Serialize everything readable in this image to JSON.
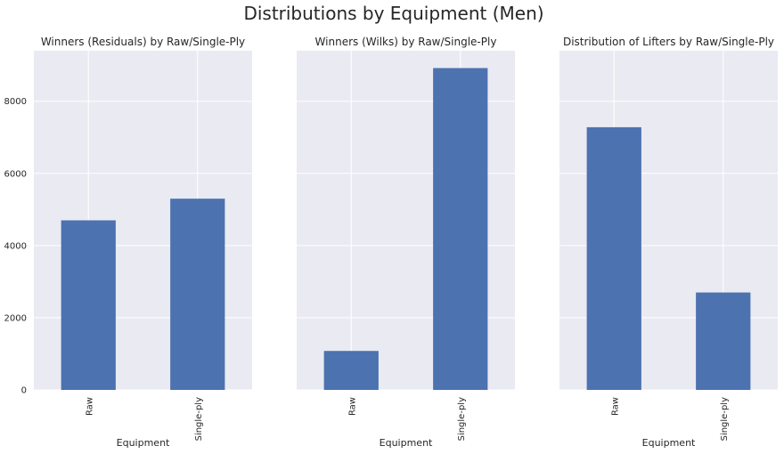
{
  "figure": {
    "title": "Distributions by Equipment (Men)"
  },
  "colors": {
    "bar": "#4c72b0",
    "plot_background": "#eaeaf2",
    "grid": "#ffffff",
    "text": "#262626"
  },
  "chart_data": [
    {
      "type": "bar",
      "title": "Winners (Residuals) by Raw/Single-Ply",
      "xlabel": "Equipment",
      "ylabel": "",
      "categories": [
        "Raw",
        "Single-ply"
      ],
      "values": [
        4700,
        5300
      ],
      "ylim": [
        0,
        9400
      ],
      "yticks": [
        0,
        2000,
        4000,
        6000,
        8000
      ],
      "yticks_shown": true,
      "grid": true,
      "legend": "none"
    },
    {
      "type": "bar",
      "title": "Winners (Wilks) by Raw/Single-Ply",
      "xlabel": "Equipment",
      "ylabel": "",
      "categories": [
        "Raw",
        "Single-ply"
      ],
      "values": [
        1080,
        8920
      ],
      "ylim": [
        0,
        9400
      ],
      "yticks": [
        0,
        2000,
        4000,
        6000,
        8000
      ],
      "yticks_shown": false,
      "grid": true,
      "legend": "none"
    },
    {
      "type": "bar",
      "title": "Distribution of Lifters by Raw/Single-Ply",
      "xlabel": "Equipment",
      "ylabel": "",
      "categories": [
        "Raw",
        "Single-ply"
      ],
      "values": [
        7280,
        2700
      ],
      "ylim": [
        0,
        9400
      ],
      "yticks": [
        0,
        2000,
        4000,
        6000,
        8000
      ],
      "yticks_shown": false,
      "grid": true,
      "legend": "none"
    }
  ]
}
